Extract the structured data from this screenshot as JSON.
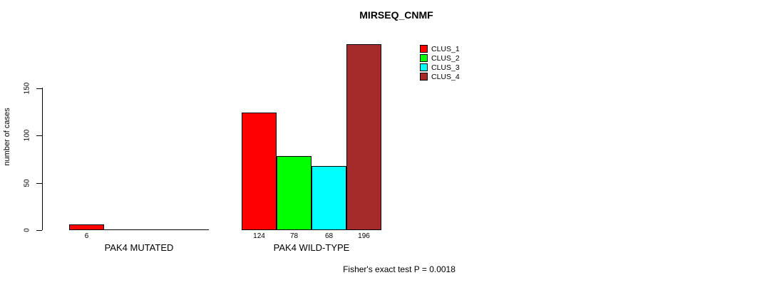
{
  "title": "MIRSEQ_CNMF",
  "y_axis_label": "number of cases",
  "footer_note": "Fisher's exact test P = 0.0018",
  "chart_data": {
    "type": "bar",
    "title": "MIRSEQ_CNMF",
    "xlabel": "",
    "ylabel": "number of cases",
    "categories": [
      "PAK4 MUTATED",
      "PAK4 WILD-TYPE"
    ],
    "series": [
      {
        "name": "CLUS_1",
        "color": "#ff0000",
        "values": [
          6,
          124
        ]
      },
      {
        "name": "CLUS_2",
        "color": "#00ff00",
        "values": [
          0,
          78
        ]
      },
      {
        "name": "CLUS_3",
        "color": "#00ffff",
        "values": [
          0,
          68
        ]
      },
      {
        "name": "CLUS_4",
        "color": "#a52a2a",
        "values": [
          0,
          196
        ]
      }
    ],
    "yticks": [
      0,
      50,
      100,
      150
    ],
    "ylim": [
      0,
      199
    ],
    "grid": false,
    "bar_outline_color": "#000000",
    "value_labels": "shown under each nonzero bar",
    "legend_position": "top-right",
    "legend_entries": [
      "CLUS_1",
      "CLUS_2",
      "CLUS_3",
      "CLUS_4"
    ],
    "annotation": "Fisher's exact test P = 0.0018"
  }
}
